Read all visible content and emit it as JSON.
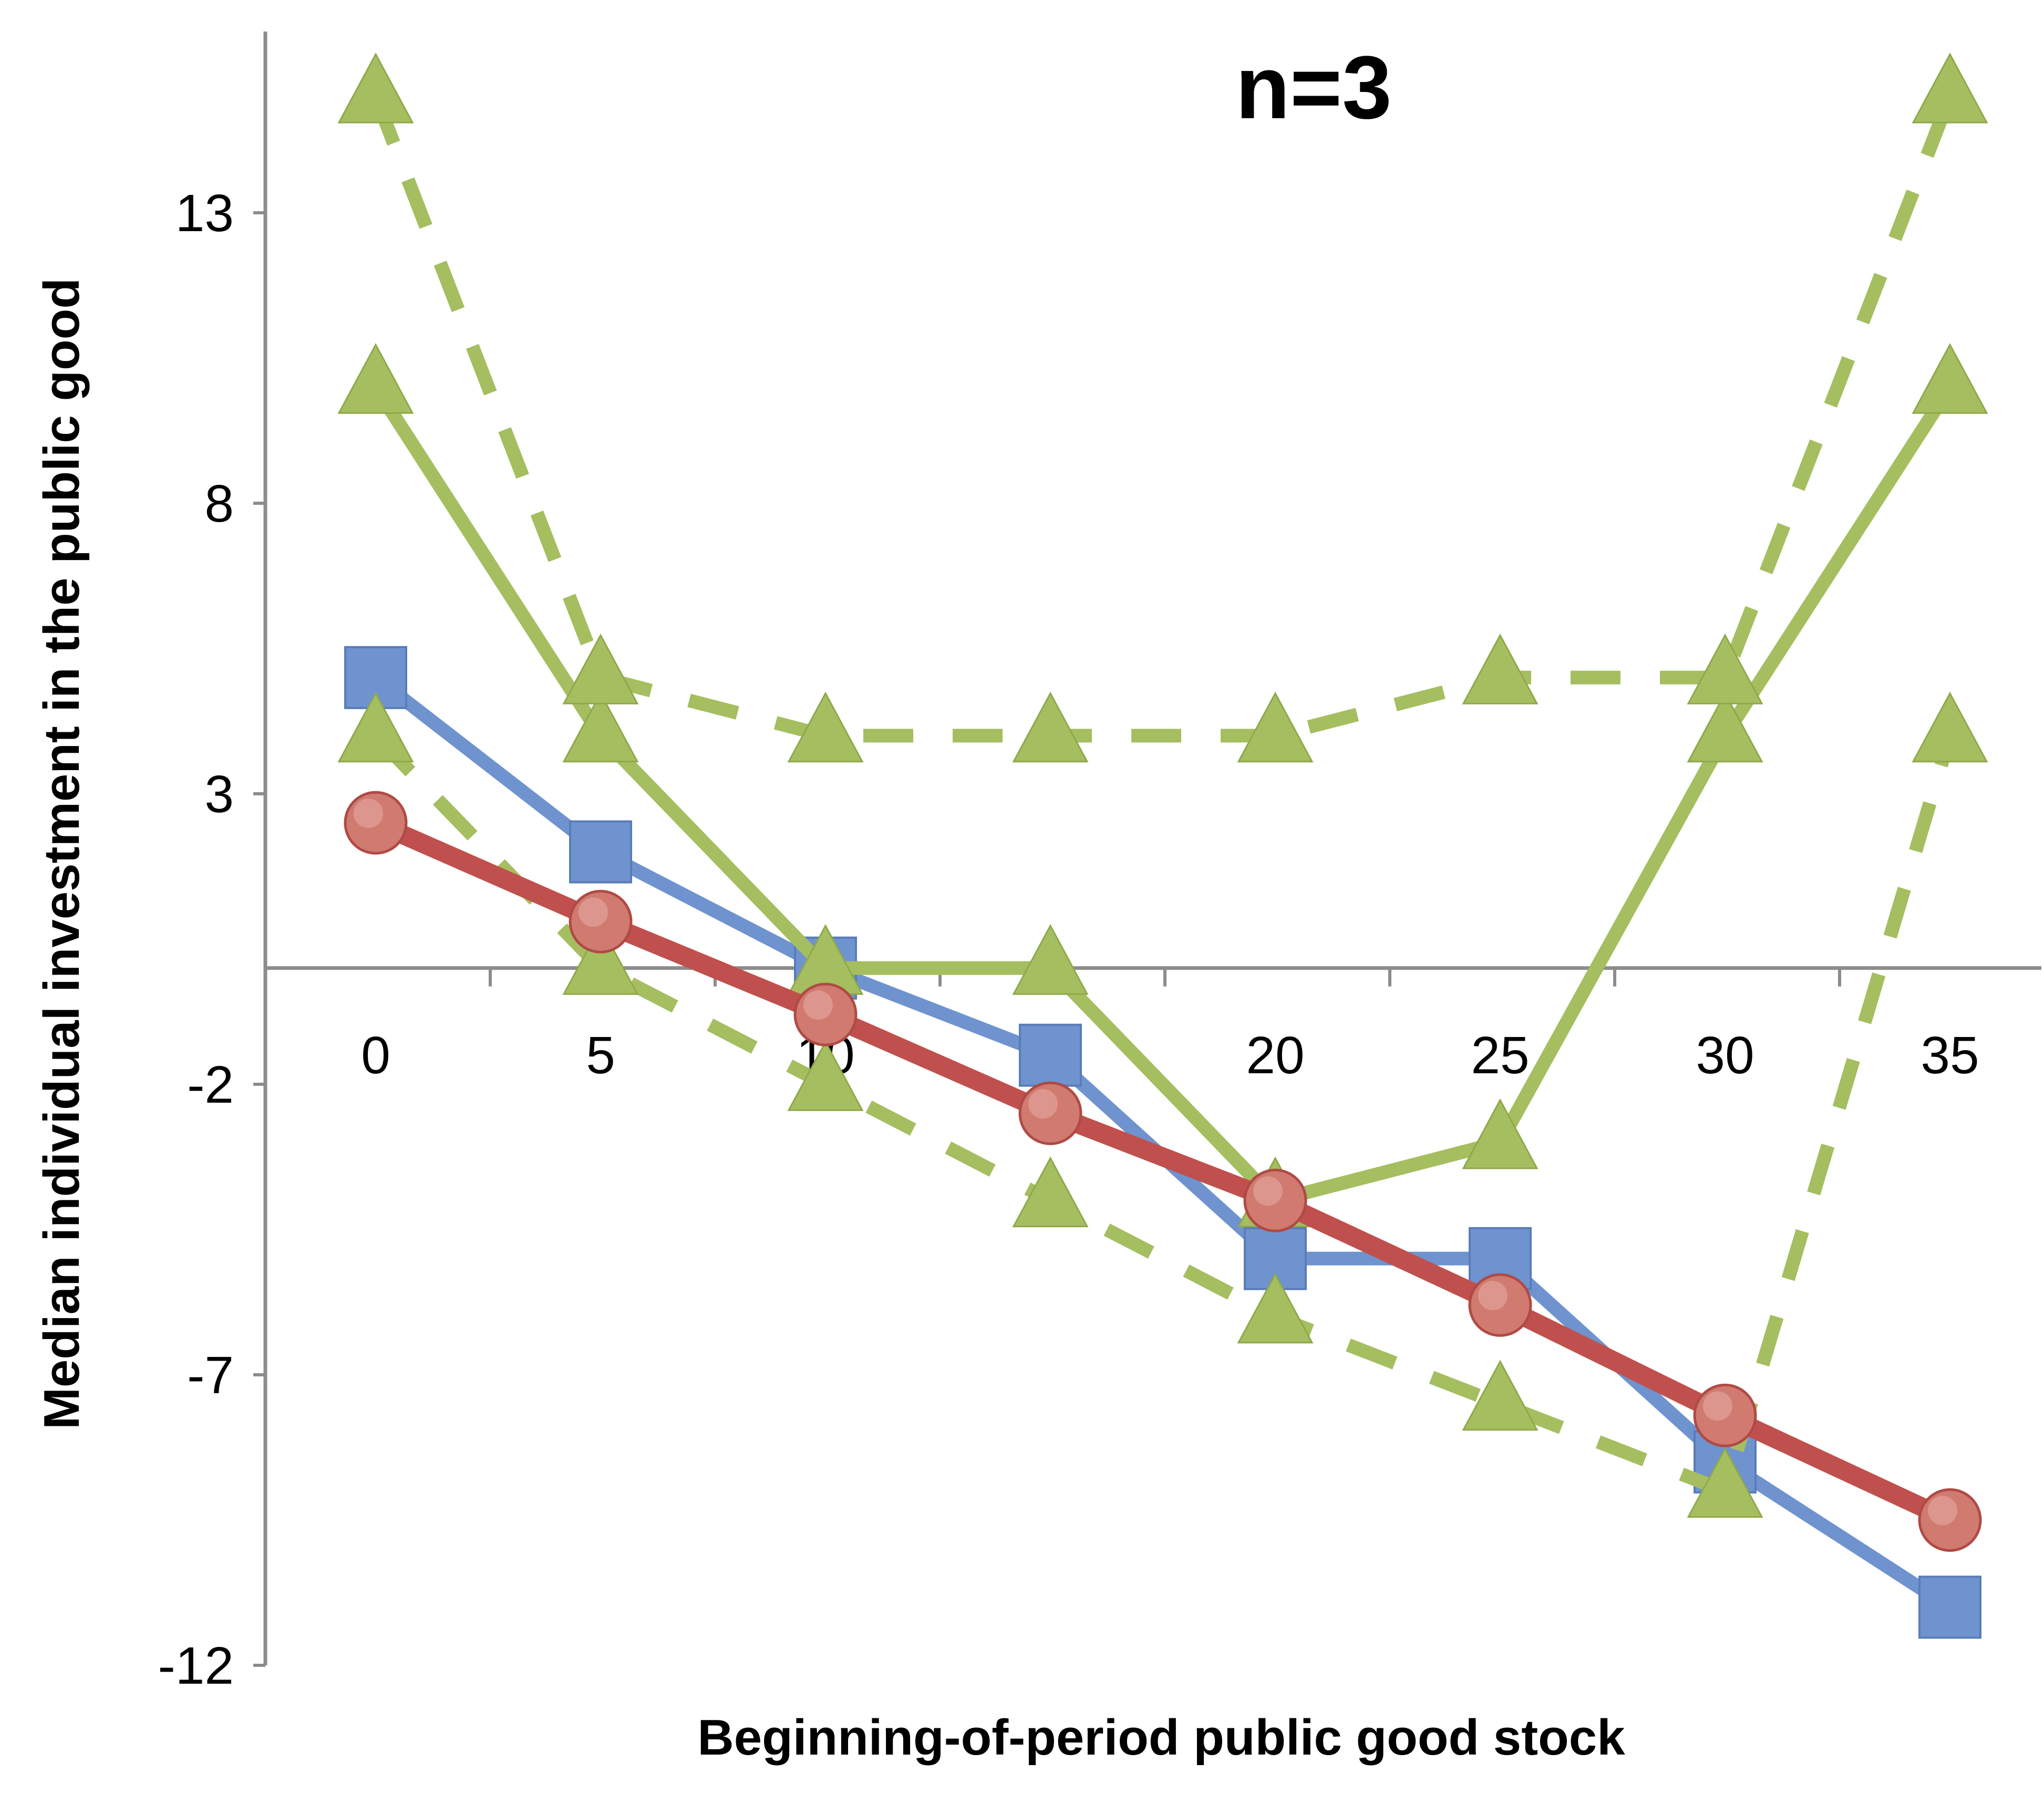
{
  "chart_data": {
    "type": "line",
    "title": "n=3",
    "xlabel": "Beginning-of-period public good stock",
    "ylabel": "Median individual investment in the public good",
    "x": [
      0,
      5,
      10,
      15,
      20,
      25,
      30,
      35
    ],
    "x_tick_labels": [
      "0",
      "5",
      "10",
      "15",
      "20",
      "25",
      "30",
      "35"
    ],
    "y_ticks": [
      13,
      8,
      3,
      -2,
      -7,
      -12
    ],
    "ylim": [
      -12,
      16
    ],
    "grid": false,
    "legend": "none",
    "series": [
      {
        "style": "solid",
        "marker": "square",
        "color": "#6f93cf",
        "values": [
          5,
          2,
          0,
          -1.5,
          -5,
          -5,
          -8.5,
          -11
        ]
      },
      {
        "style": "solid",
        "marker": "triangle",
        "color": "#a5be60",
        "values": [
          10,
          4,
          0,
          0,
          -4,
          -3,
          4,
          10
        ]
      },
      {
        "style": "dashed",
        "marker": "triangle",
        "color": "#a5be60",
        "values": [
          15,
          5,
          4,
          4,
          4,
          5,
          5,
          15
        ]
      },
      {
        "style": "dashed",
        "marker": "triangle",
        "color": "#a5be60",
        "values": [
          4,
          0,
          -2,
          -4,
          -6,
          -7.5,
          -9,
          4
        ]
      },
      {
        "style": "solid",
        "marker": "circle",
        "color": "#c0504d",
        "values": [
          2.5,
          0.8,
          -0.8,
          -2.5,
          -4,
          -5.8,
          -7.7,
          -9.5
        ]
      }
    ]
  }
}
